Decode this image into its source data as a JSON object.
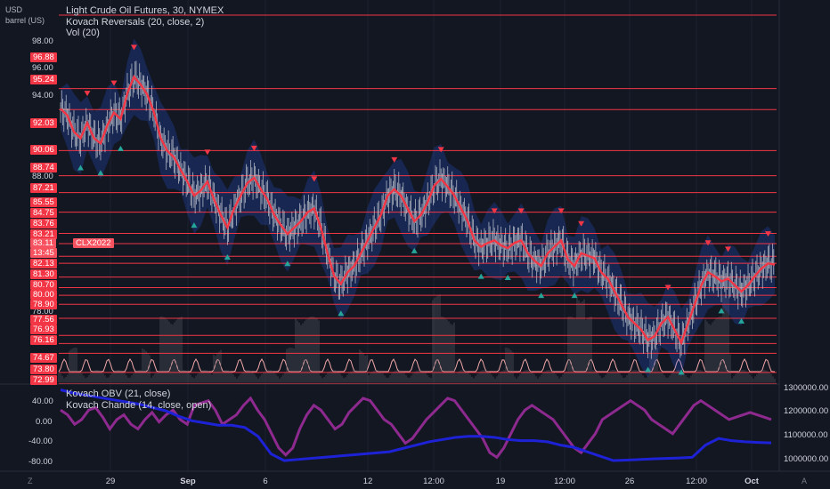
{
  "top_left": {
    "currency": "USD",
    "unit": "barrel (US)"
  },
  "legend": {
    "symbol": "Light Crude Oil Futures, 30, NYMEX",
    "indicator1": "Kovach Reversals (20, close, 2)",
    "indicator2": "Vol (20)",
    "pane2_indicator1": "Kovach OBV (21, close)",
    "pane2_indicator2": "Kovach Chande (14, close, open)"
  },
  "badges": {
    "symbol_tag": "CLX2022",
    "current_price": "83.11",
    "countdown": "13:45"
  },
  "price_axis_ticks": [
    "98.00",
    "96.00",
    "94.00",
    "88.00",
    "78.00"
  ],
  "level_badges": [
    "96.88",
    "95.24",
    "92.03",
    "90.06",
    "88.74",
    "87.21",
    "85.55",
    "84.75",
    "83.76",
    "83.21",
    "82.13",
    "81.30",
    "80.70",
    "80.00",
    "78.90",
    "77.56",
    "76.93",
    "76.16",
    "74.67",
    "73.80",
    "72.99"
  ],
  "chande_axis_ticks": [
    "40.00",
    "0.00",
    "-40.00",
    "-80.00"
  ],
  "obv_axis_ticks": [
    "1300000.00",
    "1200000.00",
    "1100000.00",
    "1000000.00"
  ],
  "time_axis": [
    "29",
    "Sep",
    "6",
    "12",
    "12:00",
    "19",
    "12:00",
    "26",
    "12:00",
    "Oct"
  ],
  "corner_left": "Z",
  "corner_right": "A",
  "colors": {
    "background": "#131722",
    "level_line": "#f23645",
    "badge": "#f23645",
    "ma_line": "#f23645",
    "band": "#2962ff",
    "bull_marker": "#26a69a",
    "bear_marker": "#f23645",
    "obv_line": "#1e22d6",
    "chande_line": "#8e2a8f",
    "volume_wave": "#f0a7a7"
  },
  "chart_data": {
    "type": "line",
    "title": "Light Crude Oil Futures, 30, NYMEX",
    "ylim": [
      72.5,
      99.5
    ],
    "price_series_approx": [
      95.3,
      94.8,
      93.5,
      93.0,
      94.2,
      93.0,
      92.6,
      94.0,
      95.0,
      94.5,
      96.5,
      97.8,
      97.2,
      96.4,
      95.0,
      93.0,
      92.0,
      91.5,
      90.5,
      89.6,
      88.5,
      88.9,
      89.6,
      88.2,
      87.0,
      86.0,
      87.5,
      88.5,
      89.5,
      89.9,
      89.0,
      88.2,
      87.0,
      86.2,
      85.5,
      86.0,
      86.5,
      87.2,
      87.5,
      86.0,
      84.0,
      82.2,
      81.6,
      82.5,
      83.0,
      84.0,
      85.0,
      86.0,
      87.0,
      88.5,
      89.0,
      88.5,
      87.5,
      86.5,
      87.0,
      88.0,
      89.3,
      89.8,
      89.2,
      88.5,
      87.5,
      86.5,
      85.0,
      84.5,
      84.8,
      85.0,
      84.6,
      84.4,
      84.8,
      85.0,
      84.0,
      83.4,
      83.0,
      84.0,
      84.5,
      85.0,
      83.5,
      83.0,
      84.0,
      83.8,
      83.6,
      82.5,
      82.0,
      81.0,
      80.0,
      79.0,
      78.5,
      78.0,
      77.2,
      77.5,
      78.5,
      79.0,
      78.0,
      77.0,
      78.5,
      80.0,
      81.5,
      82.5,
      82.2,
      81.8,
      82.0,
      81.5,
      81.0,
      81.5,
      82.2,
      82.8,
      83.2,
      83.1
    ],
    "levels": [
      96.88,
      95.24,
      92.03,
      90.06,
      88.74,
      87.21,
      85.55,
      84.75,
      83.76,
      83.21,
      82.13,
      81.3,
      80.7,
      80.0,
      78.9,
      77.56,
      76.93,
      76.16,
      74.67,
      73.8,
      72.99
    ],
    "chande_ylim": [
      -100,
      60
    ],
    "chande_series_approx": [
      20,
      10,
      -10,
      0,
      20,
      25,
      5,
      -20,
      0,
      10,
      -10,
      -20,
      0,
      15,
      -5,
      10,
      20,
      0,
      -10,
      30,
      35,
      40,
      20,
      -10,
      0,
      10,
      30,
      45,
      20,
      0,
      -30,
      -60,
      -75,
      -60,
      -20,
      10,
      30,
      20,
      0,
      -20,
      -10,
      15,
      30,
      45,
      40,
      20,
      0,
      -10,
      -30,
      -50,
      -40,
      -20,
      0,
      15,
      30,
      45,
      40,
      20,
      0,
      -20,
      -40,
      -70,
      -80,
      -60,
      -30,
      0,
      20,
      30,
      20,
      10,
      0,
      -20,
      -40,
      -60,
      -70,
      -50,
      -30,
      0,
      10,
      20,
      30,
      40,
      30,
      20,
      0,
      -10,
      -20,
      -30,
      -10,
      10,
      30,
      40,
      30,
      20,
      10,
      0,
      5,
      10,
      15,
      10,
      5,
      0
    ],
    "obv_ylim": [
      950000,
      1320000
    ],
    "obv_series_approx": [
      1310000,
      1295000,
      1285000,
      1275000,
      1265000,
      1255000,
      1245000,
      1230000,
      1215000,
      1190000,
      1170000,
      1160000,
      1150000,
      1150000,
      1140000,
      1100000,
      1020000,
      990000,
      995000,
      1000000,
      1005000,
      1010000,
      1015000,
      1020000,
      1025000,
      1030000,
      1045000,
      1060000,
      1075000,
      1085000,
      1095000,
      1100000,
      1100000,
      1095000,
      1085000,
      1080000,
      1080000,
      1075000,
      1060000,
      1050000,
      1030000,
      1010000,
      990000,
      992000,
      995000,
      998000,
      1000000,
      1002000,
      1005000,
      1060000,
      1090000,
      1080000,
      1075000,
      1072000,
      1070000
    ]
  }
}
